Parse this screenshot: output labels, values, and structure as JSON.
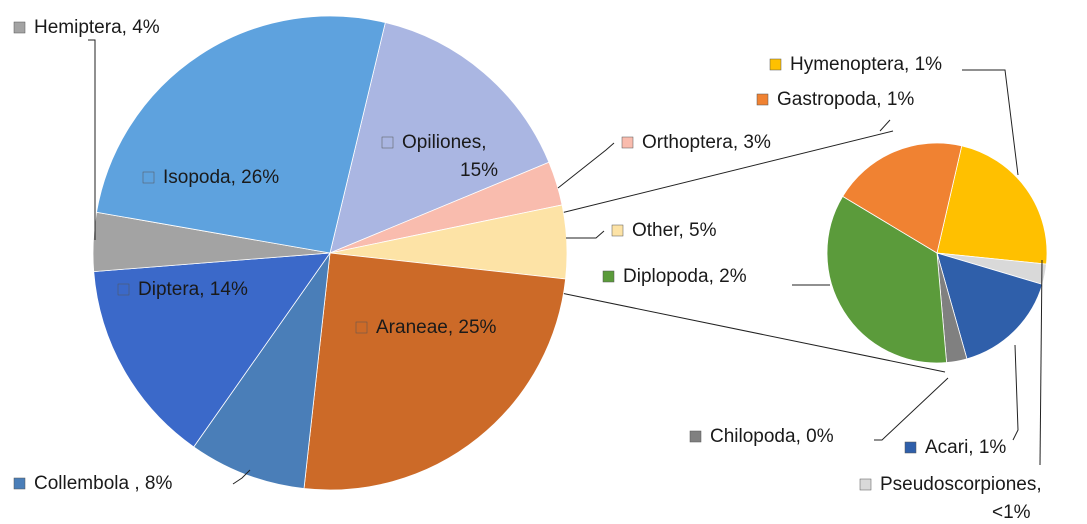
{
  "chart_data": [
    {
      "type": "pie",
      "value_labels": [
        "Opiliones,\n15%",
        "Orthoptera, 3%",
        "Other, 5%",
        "Araneae, 25%",
        "Collembola , 8%",
        "Diptera, 14%",
        "Hemiptera, 4%",
        "Isopoda, 26%"
      ],
      "values": [
        15,
        3,
        5,
        25,
        8,
        14,
        4,
        26
      ],
      "colors": [
        "#aab6e2",
        "#f9bcae",
        "#fde3a6",
        "#cc6a28",
        "#4a7eb8",
        "#3b69c9",
        "#a3a3a3",
        "#5ea2de"
      ]
    },
    {
      "type": "pie",
      "value_labels": [
        "Hymenoptera, 1%",
        "Pseudoscorpiones,\n<1%",
        "Acari, 1%",
        "Chilopoda, 0%",
        "Diplopoda, 2%",
        "Gastropoda, 1%"
      ],
      "values": [
        1.15,
        0.15,
        0.8,
        0.15,
        1.75,
        1.0
      ],
      "colors": [
        "#ffc000",
        "#d9d9d9",
        "#2f5faa",
        "#808080",
        "#5b9b3b",
        "#f08232"
      ]
    }
  ]
}
